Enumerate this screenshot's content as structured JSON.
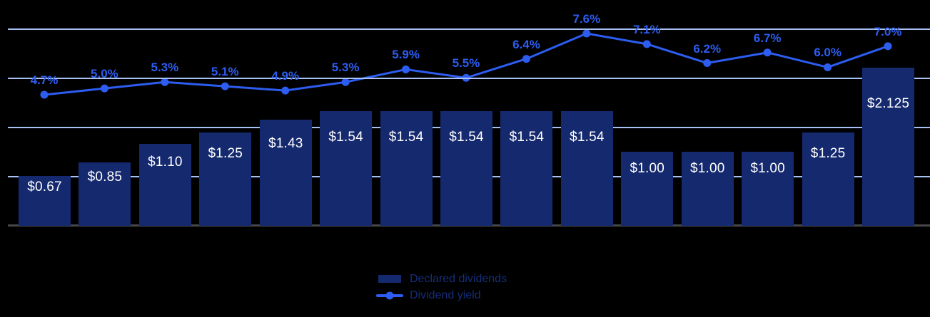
{
  "chart_data": {
    "type": "combo-bar-line",
    "grid": true,
    "legend_position": "bottom-center",
    "x_axis_labels_visible": false,
    "series": [
      {
        "name": "Declared dividends",
        "type": "bar",
        "unit": "$",
        "values": [
          0.67,
          0.85,
          1.1,
          1.25,
          1.43,
          1.54,
          1.54,
          1.54,
          1.54,
          1.54,
          1.0,
          1.0,
          1.0,
          1.25,
          2.125
        ],
        "labels": [
          "$0.67",
          "$0.85",
          "$1.10",
          "$1.25",
          "$1.43",
          "$1.54",
          "$1.54",
          "$1.54",
          "$1.54",
          "$1.54",
          "$1.00",
          "$1.00",
          "$1.00",
          "$1.25",
          "$2.125"
        ]
      },
      {
        "name": "Dividend yield",
        "type": "line",
        "unit": "%",
        "values": [
          4.7,
          5.0,
          5.3,
          5.1,
          4.9,
          5.3,
          5.9,
          5.5,
          6.4,
          7.6,
          7.1,
          6.2,
          6.7,
          6.0,
          7.0
        ],
        "labels": [
          "4.7%",
          "5.0%",
          "5.3%",
          "5.1%",
          "4.9%",
          "5.3%",
          "5.9%",
          "5.5%",
          "6.4%",
          "7.6%",
          "7.1%",
          "6.2%",
          "6.7%",
          "6.0%",
          "7.0%"
        ]
      }
    ],
    "colors": {
      "background": "#000000",
      "bar_fill": "#15296E",
      "bar_label_text": "#FFFFFF",
      "line_stroke": "#2D5DF0",
      "line_label_text": "#2D5DF0",
      "gridline": "#A9C2F5",
      "baseline": "#47474A",
      "legend_text": "#162E79"
    }
  }
}
